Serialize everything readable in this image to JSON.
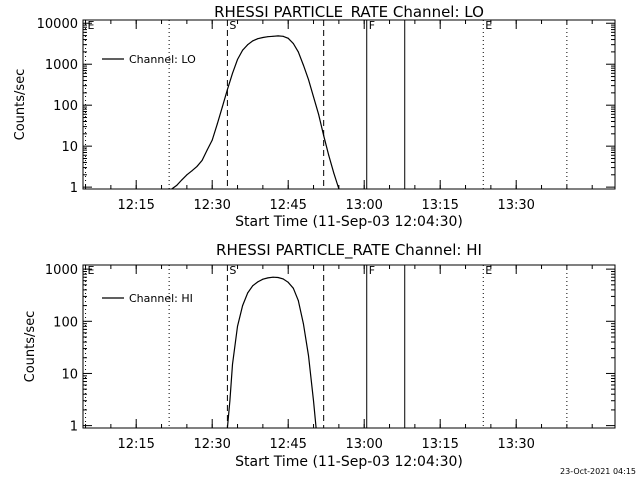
{
  "footer": "23-Oct-2021 04:15",
  "chart_data": [
    {
      "type": "line",
      "title": "RHESSI PARTICLE_RATE Channel: LO",
      "xlabel": "Start Time (11-Sep-03 12:04:30)",
      "ylabel": "Counts/sec",
      "yscale": "log",
      "ylim": [
        0.9,
        12000
      ],
      "xlim": [
        "12:04:30",
        "13:49:30"
      ],
      "x_tick_labels": [
        "12:15",
        "12:30",
        "12:45",
        "13:00",
        "13:15",
        "13:30"
      ],
      "y_tick_labels": [
        "1",
        "10",
        "100",
        "1000",
        "10000"
      ],
      "y_tick_values": [
        1,
        10,
        100,
        1000,
        10000
      ],
      "legend": {
        "position": "top-left",
        "entry": "Channel: LO"
      },
      "series": [
        {
          "name": "Channel: LO",
          "x": [
            "12:22:00",
            "12:23:00",
            "12:24:00",
            "12:25:00",
            "12:26:00",
            "12:27:00",
            "12:28:00",
            "12:29:00",
            "12:30:00",
            "12:31:00",
            "12:32:00",
            "12:33:00",
            "12:34:00",
            "12:35:00",
            "12:36:00",
            "12:37:00",
            "12:38:00",
            "12:39:00",
            "12:40:00",
            "12:41:00",
            "12:42:00",
            "12:43:00",
            "12:44:00",
            "12:45:00",
            "12:46:00",
            "12:47:00",
            "12:48:00",
            "12:49:00",
            "12:50:00",
            "12:51:00",
            "12:52:00",
            "12:53:00",
            "12:54:00",
            "12:55:00"
          ],
          "values": [
            0.9,
            1.1,
            1.5,
            2.0,
            2.5,
            3.2,
            4.5,
            8,
            14,
            35,
            90,
            240,
            600,
            1300,
            2200,
            3000,
            3700,
            4200,
            4500,
            4700,
            4800,
            4900,
            4800,
            4300,
            3200,
            2000,
            950,
            420,
            160,
            60,
            18,
            6,
            2.2,
            0.9
          ]
        }
      ],
      "vlines": [
        {
          "time": "12:05:00",
          "style": "dotted",
          "label": "E"
        },
        {
          "time": "12:21:30",
          "style": "dotted",
          "label": ""
        },
        {
          "time": "12:33:00",
          "style": "dashed",
          "label": "S"
        },
        {
          "time": "12:52:00",
          "style": "dashed",
          "label": ""
        },
        {
          "time": "13:00:30",
          "style": "solid",
          "label": "F"
        },
        {
          "time": "13:08:00",
          "style": "solid",
          "label": ""
        },
        {
          "time": "13:23:30",
          "style": "dotted",
          "label": "E"
        },
        {
          "time": "13:40:00",
          "style": "dotted",
          "label": ""
        }
      ]
    },
    {
      "type": "line",
      "title": "RHESSI PARTICLE_RATE Channel: HI",
      "xlabel": "Start Time (11-Sep-03 12:04:30)",
      "ylabel": "Counts/sec",
      "yscale": "log",
      "ylim": [
        0.9,
        1200
      ],
      "xlim": [
        "12:04:30",
        "13:49:30"
      ],
      "x_tick_labels": [
        "12:15",
        "12:30",
        "12:45",
        "13:00",
        "13:15",
        "13:30"
      ],
      "y_tick_labels": [
        "1",
        "10",
        "100",
        "1000"
      ],
      "y_tick_values": [
        1,
        10,
        100,
        1000
      ],
      "legend": {
        "position": "top-left",
        "entry": "Channel: HI"
      },
      "series": [
        {
          "name": "Channel: HI",
          "x": [
            "12:33:00",
            "12:33:30",
            "12:34:00",
            "12:35:00",
            "12:36:00",
            "12:37:00",
            "12:38:00",
            "12:39:00",
            "12:40:00",
            "12:41:00",
            "12:42:00",
            "12:43:00",
            "12:44:00",
            "12:45:00",
            "12:46:00",
            "12:47:00",
            "12:48:00",
            "12:49:00",
            "12:50:00",
            "12:50:30"
          ],
          "values": [
            0.9,
            3,
            15,
            80,
            200,
            350,
            480,
            570,
            640,
            680,
            700,
            690,
            650,
            560,
            430,
            250,
            90,
            22,
            3,
            0.9
          ]
        }
      ],
      "vlines": [
        {
          "time": "12:05:00",
          "style": "dotted",
          "label": "E"
        },
        {
          "time": "12:21:30",
          "style": "dotted",
          "label": ""
        },
        {
          "time": "12:33:00",
          "style": "dashed",
          "label": "S"
        },
        {
          "time": "12:52:00",
          "style": "dashed",
          "label": ""
        },
        {
          "time": "13:00:30",
          "style": "solid",
          "label": "F"
        },
        {
          "time": "13:08:00",
          "style": "solid",
          "label": ""
        },
        {
          "time": "13:23:30",
          "style": "dotted",
          "label": "E"
        },
        {
          "time": "13:40:00",
          "style": "dotted",
          "label": ""
        }
      ]
    }
  ]
}
